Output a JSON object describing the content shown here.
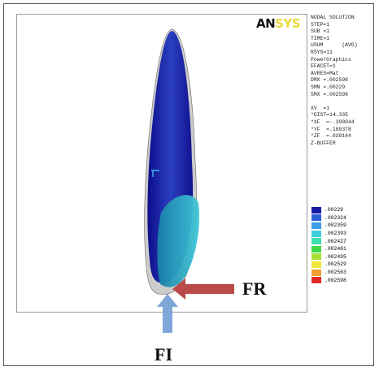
{
  "logo": {
    "part1": "AN",
    "part2": "SYS"
  },
  "info": [
    "NODAL SOLUTION",
    "STEP=1",
    "SUB =1",
    "TIME=1",
    "USUM      (AVG)",
    "RSYS=11",
    "PowerGraphics",
    "EFACET=1",
    "AVRES=Mat",
    "DMX =.002598",
    "SMN =.00229",
    "SMX =.002598",
    "",
    "XV  =1",
    "*DIST=14.335",
    "*XF  =-.390044",
    "*YF  =.180378",
    "*ZF  =.039144",
    "Z-BUFFER"
  ],
  "legend": [
    {
      "label": ".00229",
      "color": "#1a1aa8"
    },
    {
      "label": ".002324",
      "color": "#2a5fd8"
    },
    {
      "label": ".002359",
      "color": "#3f9ee8"
    },
    {
      "label": ".002393",
      "color": "#3fd0e0"
    },
    {
      "label": ".002427",
      "color": "#3fe0b0"
    },
    {
      "label": ".002461",
      "color": "#3fd84a"
    },
    {
      "label": ".002495",
      "color": "#a8e03a"
    },
    {
      "label": ".002529",
      "color": "#f0e83a"
    },
    {
      "label": ".002563",
      "color": "#f0a030"
    },
    {
      "label": ".002598",
      "color": "#e02a2a"
    }
  ],
  "forces": {
    "fr": "FR",
    "fi": "FI"
  }
}
